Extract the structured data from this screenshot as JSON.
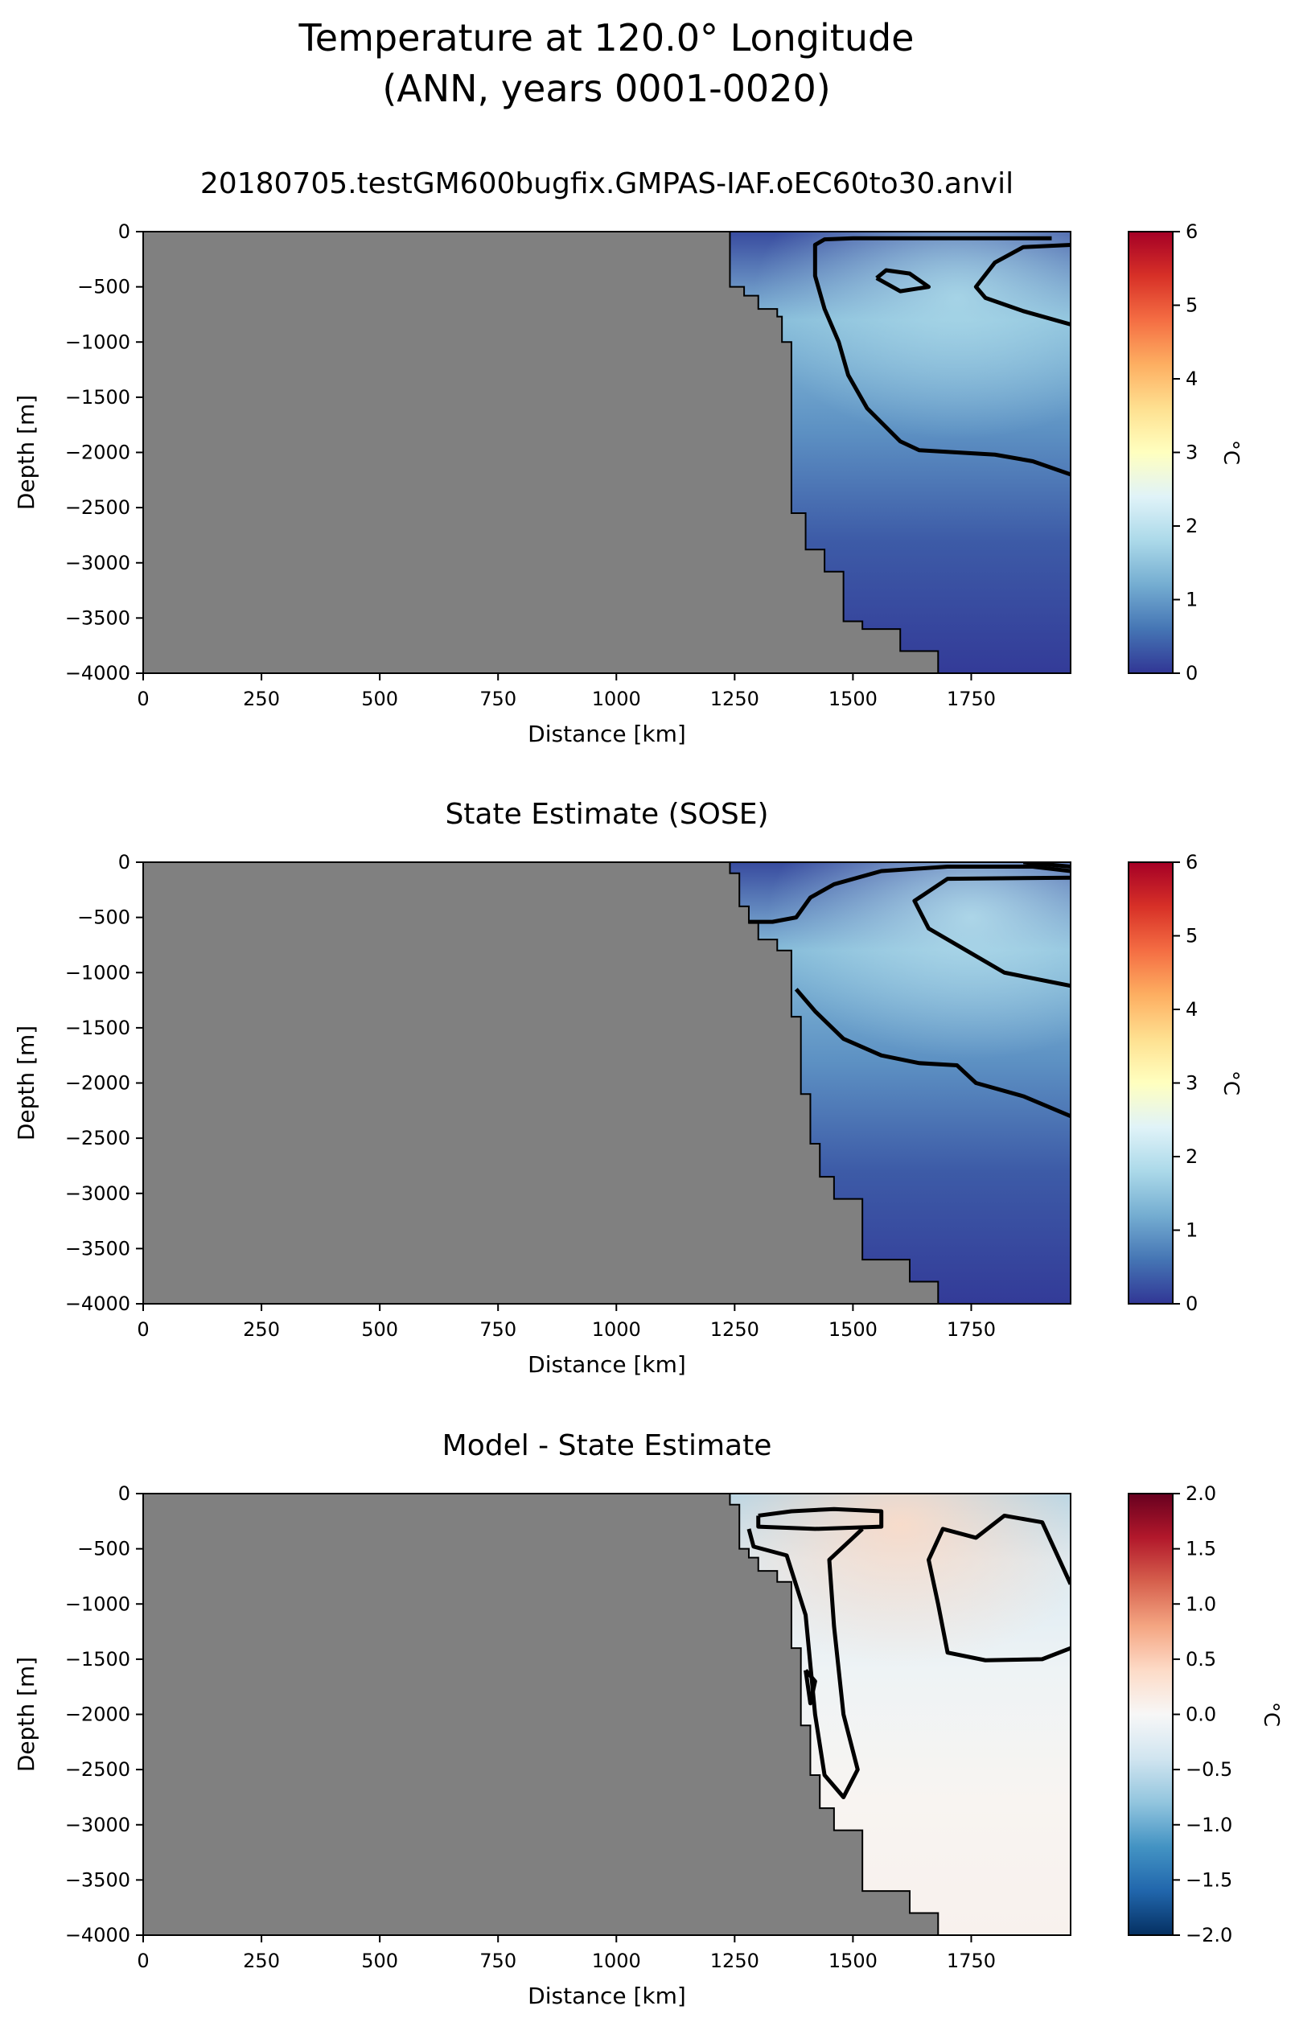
{
  "figure": {
    "title_line1": "Temperature at 120.0° Longitude",
    "title_line2": "(ANN, years 0001-0020)"
  },
  "chart_data": [
    {
      "type": "heatmap",
      "title": "20180705.testGM600bugfix.GMPAS-IAF.oEC60to30.anvil",
      "xlabel": "Distance [km]",
      "ylabel": "Depth [m]",
      "xlim": [
        0,
        1960
      ],
      "ylim": [
        -4000,
        0
      ],
      "xticks": [
        0,
        250,
        500,
        750,
        1000,
        1250,
        1500,
        1750
      ],
      "yticks": [
        0,
        -500,
        -1000,
        -1500,
        -2000,
        -2500,
        -3000,
        -3500,
        -4000
      ],
      "colorbar": {
        "label": "°C",
        "min": 0,
        "max": 6,
        "ticks": [
          0,
          1,
          2,
          3,
          4,
          5,
          6
        ],
        "colormap": "RdYlBu_r"
      },
      "land_color": "#808080",
      "bathymetry": [
        [
          1240,
          0
        ],
        [
          1240,
          -500
        ],
        [
          1270,
          -500
        ],
        [
          1270,
          -580
        ],
        [
          1300,
          -580
        ],
        [
          1300,
          -700
        ],
        [
          1340,
          -700
        ],
        [
          1340,
          -770
        ],
        [
          1350,
          -770
        ],
        [
          1350,
          -1000
        ],
        [
          1370,
          -1000
        ],
        [
          1370,
          -2550
        ],
        [
          1400,
          -2550
        ],
        [
          1400,
          -2880
        ],
        [
          1440,
          -2880
        ],
        [
          1440,
          -3080
        ],
        [
          1480,
          -3080
        ],
        [
          1480,
          -3530
        ],
        [
          1520,
          -3530
        ],
        [
          1520,
          -3600
        ],
        [
          1600,
          -3600
        ],
        [
          1600,
          -3800
        ],
        [
          1680,
          -3800
        ],
        [
          1680,
          -4000
        ]
      ],
      "warm_core": {
        "x": 1720,
        "depth": -600,
        "value": 1.8
      },
      "contours": [
        [
          [
            1920,
            -60
          ],
          [
            1700,
            -60
          ],
          [
            1500,
            -60
          ],
          [
            1440,
            -70
          ],
          [
            1420,
            -120
          ],
          [
            1420,
            -400
          ],
          [
            1440,
            -700
          ],
          [
            1470,
            -1000
          ],
          [
            1490,
            -1300
          ],
          [
            1530,
            -1600
          ],
          [
            1600,
            -1900
          ],
          [
            1640,
            -1980
          ],
          [
            1800,
            -2020
          ],
          [
            1880,
            -2080
          ],
          [
            1960,
            -2200
          ]
        ],
        [
          [
            1960,
            -840
          ],
          [
            1860,
            -720
          ],
          [
            1780,
            -600
          ],
          [
            1760,
            -500
          ],
          [
            1800,
            -280
          ],
          [
            1860,
            -140
          ],
          [
            1960,
            -120
          ]
        ],
        [
          [
            1550,
            -420
          ],
          [
            1570,
            -350
          ],
          [
            1620,
            -380
          ],
          [
            1660,
            -500
          ],
          [
            1600,
            -540
          ],
          [
            1550,
            -420
          ]
        ]
      ]
    },
    {
      "type": "heatmap",
      "title": "State Estimate (SOSE)",
      "xlabel": "Distance [km]",
      "ylabel": "Depth [m]",
      "xlim": [
        0,
        1960
      ],
      "ylim": [
        -4000,
        0
      ],
      "xticks": [
        0,
        250,
        500,
        750,
        1000,
        1250,
        1500,
        1750
      ],
      "yticks": [
        0,
        -500,
        -1000,
        -1500,
        -2000,
        -2500,
        -3000,
        -3500,
        -4000
      ],
      "colorbar": {
        "label": "°C",
        "min": 0,
        "max": 6,
        "ticks": [
          0,
          1,
          2,
          3,
          4,
          5,
          6
        ],
        "colormap": "RdYlBu_r"
      },
      "land_color": "#808080",
      "bathymetry": [
        [
          1240,
          0
        ],
        [
          1240,
          -100
        ],
        [
          1260,
          -100
        ],
        [
          1260,
          -400
        ],
        [
          1280,
          -400
        ],
        [
          1280,
          -550
        ],
        [
          1300,
          -550
        ],
        [
          1300,
          -700
        ],
        [
          1340,
          -700
        ],
        [
          1340,
          -800
        ],
        [
          1370,
          -800
        ],
        [
          1370,
          -1400
        ],
        [
          1390,
          -1400
        ],
        [
          1390,
          -2100
        ],
        [
          1410,
          -2100
        ],
        [
          1410,
          -2550
        ],
        [
          1430,
          -2550
        ],
        [
          1430,
          -2850
        ],
        [
          1460,
          -2850
        ],
        [
          1460,
          -3050
        ],
        [
          1520,
          -3050
        ],
        [
          1520,
          -3600
        ],
        [
          1620,
          -3600
        ],
        [
          1620,
          -3800
        ],
        [
          1680,
          -3800
        ],
        [
          1680,
          -4000
        ]
      ],
      "warm_core": {
        "x": 1750,
        "depth": -500,
        "value": 1.9
      },
      "contours": [
        [
          [
            1960,
            -80
          ],
          [
            1880,
            -40
          ],
          [
            1700,
            -40
          ],
          [
            1560,
            -80
          ],
          [
            1460,
            -200
          ],
          [
            1410,
            -320
          ],
          [
            1380,
            -500
          ],
          [
            1330,
            -540
          ],
          [
            1280,
            -540
          ]
        ],
        [
          [
            1960,
            -1120
          ],
          [
            1820,
            -1000
          ],
          [
            1740,
            -800
          ],
          [
            1660,
            -600
          ],
          [
            1630,
            -350
          ],
          [
            1700,
            -150
          ],
          [
            1960,
            -140
          ]
        ],
        [
          [
            1380,
            -1150
          ],
          [
            1420,
            -1350
          ],
          [
            1480,
            -1600
          ],
          [
            1560,
            -1750
          ],
          [
            1640,
            -1820
          ],
          [
            1720,
            -1840
          ],
          [
            1760,
            -2000
          ],
          [
            1860,
            -2120
          ],
          [
            1960,
            -2300
          ]
        ],
        [
          [
            1860,
            0
          ],
          [
            1960,
            -40
          ]
        ]
      ]
    },
    {
      "type": "heatmap",
      "title": "Model - State Estimate",
      "xlabel": "Distance [km]",
      "ylabel": "Depth [m]",
      "xlim": [
        0,
        1960
      ],
      "ylim": [
        -4000,
        0
      ],
      "xticks": [
        0,
        250,
        500,
        750,
        1000,
        1250,
        1500,
        1750
      ],
      "yticks": [
        0,
        -500,
        -1000,
        -1500,
        -2000,
        -2500,
        -3000,
        -3500,
        -4000
      ],
      "colorbar": {
        "label": "°C",
        "min": -2,
        "max": 2,
        "ticks": [
          2.0,
          1.5,
          1.0,
          0.5,
          0.0,
          -0.5,
          -1.0,
          -1.5,
          -2.0
        ],
        "colormap": "RdBu_r"
      },
      "land_color": "#808080",
      "bathymetry": [
        [
          1240,
          0
        ],
        [
          1240,
          -100
        ],
        [
          1260,
          -100
        ],
        [
          1260,
          -500
        ],
        [
          1280,
          -500
        ],
        [
          1280,
          -580
        ],
        [
          1300,
          -580
        ],
        [
          1300,
          -700
        ],
        [
          1340,
          -700
        ],
        [
          1340,
          -800
        ],
        [
          1370,
          -800
        ],
        [
          1370,
          -1400
        ],
        [
          1390,
          -1400
        ],
        [
          1390,
          -2100
        ],
        [
          1410,
          -2100
        ],
        [
          1410,
          -2550
        ],
        [
          1430,
          -2550
        ],
        [
          1430,
          -2850
        ],
        [
          1460,
          -2850
        ],
        [
          1460,
          -3050
        ],
        [
          1520,
          -3050
        ],
        [
          1520,
          -3600
        ],
        [
          1620,
          -3600
        ],
        [
          1620,
          -3800
        ],
        [
          1680,
          -3800
        ],
        [
          1680,
          -4000
        ]
      ],
      "warm_core": {
        "x": 1600,
        "depth": -280,
        "value": 0.4
      },
      "contours": [
        [
          [
            1300,
            -200
          ],
          [
            1370,
            -160
          ],
          [
            1460,
            -140
          ],
          [
            1560,
            -160
          ],
          [
            1560,
            -300
          ],
          [
            1420,
            -320
          ],
          [
            1300,
            -300
          ],
          [
            1300,
            -200
          ]
        ],
        [
          [
            1280,
            -320
          ],
          [
            1290,
            -480
          ],
          [
            1360,
            -560
          ],
          [
            1400,
            -1100
          ],
          [
            1420,
            -2000
          ],
          [
            1440,
            -2550
          ],
          [
            1480,
            -2750
          ],
          [
            1510,
            -2500
          ],
          [
            1480,
            -2000
          ],
          [
            1460,
            -1200
          ],
          [
            1450,
            -600
          ],
          [
            1500,
            -400
          ],
          [
            1520,
            -320
          ]
        ],
        [
          [
            1960,
            -1400
          ],
          [
            1900,
            -1500
          ],
          [
            1780,
            -1510
          ],
          [
            1700,
            -1440
          ],
          [
            1680,
            -1000
          ],
          [
            1660,
            -600
          ],
          [
            1690,
            -320
          ],
          [
            1760,
            -400
          ],
          [
            1820,
            -200
          ],
          [
            1900,
            -260
          ],
          [
            1960,
            -820
          ]
        ],
        [
          [
            1400,
            -1600
          ],
          [
            1410,
            -1900
          ],
          [
            1420,
            -1700
          ],
          [
            1400,
            -1600
          ]
        ]
      ]
    }
  ]
}
